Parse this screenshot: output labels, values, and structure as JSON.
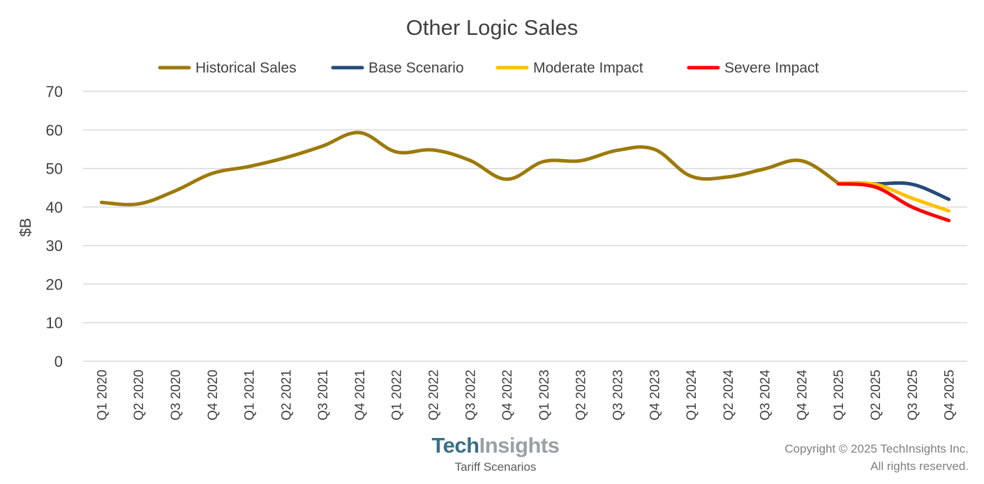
{
  "chart_data": {
    "type": "line",
    "title": "Other Logic Sales",
    "ylabel": "$B",
    "xlabel": "",
    "ylim": [
      0,
      70
    ],
    "yticks": [
      0,
      10,
      20,
      30,
      40,
      50,
      60,
      70
    ],
    "grid": true,
    "legend_position": "top",
    "categories": [
      "Q1 2020",
      "Q2 2020",
      "Q3 2020",
      "Q4 2020",
      "Q1 2021",
      "Q2 2021",
      "Q3 2021",
      "Q4 2021",
      "Q1 2022",
      "Q2 2022",
      "Q3 2022",
      "Q4 2022",
      "Q1 2023",
      "Q2 2023",
      "Q3 2023",
      "Q4 2023",
      "Q1 2024",
      "Q2 2024",
      "Q3 2024",
      "Q4 2024",
      "Q1 2025",
      "Q2 2025",
      "Q3 2025",
      "Q4 2025"
    ],
    "series": [
      {
        "name": "Historical Sales",
        "color": "#9c7a0c",
        "values": [
          41.2,
          40.8,
          44.2,
          48.7,
          50.5,
          52.8,
          55.8,
          59.3,
          54.3,
          54.8,
          52.1,
          47.2,
          51.8,
          52.0,
          54.7,
          55.0,
          48.0,
          47.8,
          49.9,
          52.0,
          46.2,
          null,
          null,
          null
        ]
      },
      {
        "name": "Base Scenario",
        "color": "#264b7a",
        "values": [
          null,
          null,
          null,
          null,
          null,
          null,
          null,
          null,
          null,
          null,
          null,
          null,
          null,
          null,
          null,
          null,
          null,
          null,
          null,
          null,
          46.2,
          46.0,
          45.9,
          42.0
        ]
      },
      {
        "name": "Moderate Impact",
        "color": "#ffc000",
        "values": [
          null,
          null,
          null,
          null,
          null,
          null,
          null,
          null,
          null,
          null,
          null,
          null,
          null,
          null,
          null,
          null,
          null,
          null,
          null,
          null,
          46.2,
          45.9,
          42.3,
          39.0
        ]
      },
      {
        "name": "Severe Impact",
        "color": "#ff0000",
        "values": [
          null,
          null,
          null,
          null,
          null,
          null,
          null,
          null,
          null,
          null,
          null,
          null,
          null,
          null,
          null,
          null,
          null,
          null,
          null,
          null,
          46.0,
          45.2,
          40.0,
          36.5
        ]
      }
    ]
  },
  "footer": {
    "brand_tech": "Tech",
    "brand_insights": "Insights",
    "subtitle": "Tariff Scenarios",
    "copyright_line1": "Copyright © 2025 TechInsights Inc.",
    "copyright_line2": "All rights reserved."
  }
}
